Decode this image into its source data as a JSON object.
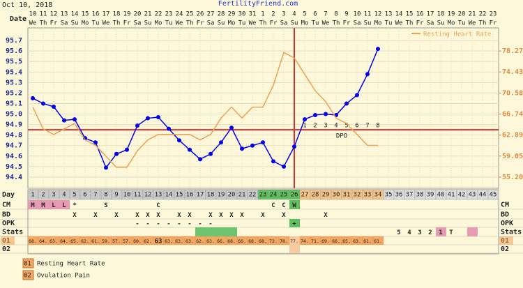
{
  "header": {
    "date": "Oct 10, 2018",
    "site": "FertilityFriend.com"
  },
  "chart_data": {
    "type": "line",
    "row_labels": {
      "date": "Date",
      "day": "Day"
    },
    "categories": [
      "10",
      "11",
      "12",
      "13",
      "14",
      "15",
      "16",
      "17",
      "18",
      "19",
      "20",
      "21",
      "22",
      "23",
      "24",
      "25",
      "26",
      "27",
      "28",
      "29",
      "30",
      "31",
      "1",
      "2",
      "3",
      "4",
      "5",
      "6",
      "7",
      "8",
      "9",
      "10",
      "11",
      "12",
      "13",
      "14",
      "15",
      "16",
      "17",
      "18",
      "19",
      "20",
      "21",
      "22",
      "23"
    ],
    "weekdays": [
      "We",
      "Th",
      "Fr",
      "Sa",
      "Su",
      "Mo",
      "Tu",
      "We",
      "Th",
      "Fr",
      "Sa",
      "Su",
      "Mo",
      "Tu",
      "We",
      "Th",
      "Fr",
      "Sa",
      "Su",
      "Mo",
      "Tu",
      "We",
      "Th",
      "Fr",
      "Sa",
      "Su",
      "Mo",
      "Tu",
      "We",
      "Th",
      "Fr",
      "Sa",
      "Su",
      "Mo",
      "Tu",
      "We",
      "Th",
      "Fr",
      "Sa",
      "Su",
      "Mo",
      "Tu",
      "We",
      "Th",
      "Fr"
    ],
    "days": [
      1,
      2,
      3,
      4,
      5,
      6,
      7,
      8,
      9,
      10,
      11,
      12,
      13,
      14,
      15,
      16,
      17,
      18,
      19,
      20,
      21,
      22,
      23,
      24,
      25,
      26,
      27,
      28,
      29,
      30,
      31,
      32,
      33,
      34,
      35,
      36,
      37,
      38,
      39,
      40,
      41,
      42,
      43,
      44,
      45
    ],
    "ylim": [
      94.3,
      95.8
    ],
    "yticks": [
      95.7,
      95.6,
      95.5,
      95.4,
      95.3,
      95.2,
      95.1,
      {
        "value": 95,
        "label": "95.0"
      },
      94.9,
      94.8,
      94.7,
      94.6,
      94.5,
      94.4
    ],
    "y2lim": [
      53.28,
      82.11
    ],
    "y2ticks": [
      78.27,
      74.43,
      70.58,
      66.74,
      62.89,
      59.05,
      {
        "value": 55.2,
        "label": "55.20"
      }
    ],
    "grid": true,
    "coverline": {
      "value": 94.85,
      "color": "#d03030"
    },
    "ovulation_day": 26,
    "ovulation_color": "#d03030",
    "dpo": {
      "label": "DPO",
      "values": [
        1,
        2,
        3,
        4,
        5,
        6,
        7,
        8
      ]
    },
    "legend": "top-right",
    "series": [
      {
        "color": "#0000ee",
        "values": [
          95.15,
          95.1,
          95.07,
          94.94,
          94.95,
          94.77,
          94.73,
          94.49,
          94.62,
          94.66,
          94.89,
          94.96,
          94.97,
          94.86,
          94.75,
          94.66,
          94.57,
          94.62,
          94.73,
          94.87,
          94.67,
          94.7,
          94.73,
          94.55,
          94.5,
          94.69,
          94.95,
          94.99,
          95.0,
          94.99,
          95.1,
          95.18,
          95.38,
          95.62,
          null,
          null,
          null,
          null,
          null,
          null,
          null,
          null,
          null,
          null,
          null
        ]
      },
      {
        "name": "Resting Heart Rate",
        "color": "#f0a050",
        "axis": "y2",
        "values": [
          68,
          64,
          63,
          64,
          65,
          62,
          61,
          59,
          57,
          57,
          60,
          62,
          63,
          63,
          63,
          63,
          62,
          63,
          66,
          68,
          66,
          68,
          68,
          72,
          78,
          77,
          74,
          71,
          69,
          66,
          65,
          63,
          61,
          61,
          null,
          null,
          null,
          null,
          null,
          null,
          null,
          null,
          null,
          null,
          null
        ],
        "value_labels": [
          "68.",
          "64.",
          "63.",
          "64.",
          "65.",
          "62.",
          "61.",
          "59.",
          "57.",
          "57.",
          "60.",
          "62.",
          "63",
          "63.",
          "63.",
          "63.",
          "62.",
          "63.",
          "66.",
          "68.",
          "66.",
          "68.",
          "68.",
          "72.",
          "78.",
          "77.",
          "74.",
          "71.",
          "69.",
          "66.",
          "65.",
          "63.",
          "61.",
          "61.",
          null,
          null,
          null,
          null,
          null,
          null,
          null,
          null,
          null,
          null,
          null
        ]
      }
    ]
  },
  "table": {
    "day_fills": [
      {
        "from": 1,
        "to": 22,
        "color": "#c9c9c9"
      },
      {
        "from": 23,
        "to": 26,
        "color": "#5fbf5f"
      },
      {
        "from": 27,
        "to": 34,
        "color": "#f3c488"
      },
      {
        "from": 35,
        "to": 45,
        "color": "#dcdcdc"
      }
    ],
    "rows": [
      {
        "label": "CM",
        "cells": [
          {
            "day": 1,
            "text": "M",
            "color": "#e79bb2"
          },
          {
            "day": 2,
            "text": "M",
            "color": "#e79bb2"
          },
          {
            "day": 3,
            "text": "L",
            "color": "#e79bb2"
          },
          {
            "day": 4,
            "text": "L",
            "color": "#e79bb2"
          },
          {
            "day": 5,
            "text": "*"
          },
          {
            "day": 8,
            "text": "S"
          },
          {
            "day": 13,
            "text": "C"
          },
          {
            "day": 24,
            "text": "C"
          },
          {
            "day": 25,
            "text": "C"
          },
          {
            "day": 26,
            "text": "W",
            "color": "#5fbf5f"
          }
        ]
      },
      {
        "label": "BD",
        "cells": [
          {
            "day": 5,
            "text": "X"
          },
          {
            "day": 7,
            "text": "X"
          },
          {
            "day": 9,
            "text": "X"
          },
          {
            "day": 11,
            "text": "X"
          },
          {
            "day": 12,
            "text": "X"
          },
          {
            "day": 13,
            "text": "X"
          },
          {
            "day": 15,
            "text": "X"
          },
          {
            "day": 16,
            "text": "X"
          },
          {
            "day": 18,
            "text": "X"
          },
          {
            "day": 19,
            "text": "X"
          },
          {
            "day": 20,
            "text": "X"
          },
          {
            "day": 21,
            "text": "X"
          },
          {
            "day": 23,
            "text": "X"
          },
          {
            "day": 25,
            "text": "X"
          },
          {
            "day": 29,
            "text": "X"
          }
        ]
      },
      {
        "label": "OPK",
        "cells": [
          {
            "day": 11,
            "text": "-"
          },
          {
            "day": 12,
            "text": "-"
          },
          {
            "day": 13,
            "text": "-"
          },
          {
            "day": 14,
            "text": "-"
          },
          {
            "day": 15,
            "text": "-"
          },
          {
            "day": 16,
            "text": "-"
          },
          {
            "day": 17,
            "text": "-"
          },
          {
            "day": 18,
            "text": "-"
          },
          {
            "day": 26,
            "text": "+",
            "color": "#5fbf5f"
          }
        ]
      },
      {
        "label": "Stats",
        "cells": [
          {
            "day": 17,
            "color": "#6fc46f"
          },
          {
            "day": 18,
            "color": "#6fc46f"
          },
          {
            "day": 19,
            "color": "#6fc46f"
          },
          {
            "day": 20,
            "color": "#6fc46f"
          },
          {
            "day": 36,
            "text": "5"
          },
          {
            "day": 37,
            "text": "4"
          },
          {
            "day": 38,
            "text": "3"
          },
          {
            "day": 39,
            "text": "2"
          },
          {
            "day": 40,
            "text": "1",
            "color": "#e79bb2"
          },
          {
            "day": 41,
            "text": "T"
          },
          {
            "day": 43,
            "color": "#e79bb2"
          }
        ]
      },
      {
        "label": "01",
        "color": "#f2a860",
        "labels_from_series": 1
      },
      {
        "label": "02"
      }
    ],
    "ovulation_fill": "#f8caa0",
    "legend": [
      {
        "code": "01",
        "name": "Resting Heart Rate",
        "color": "#f2a860"
      },
      {
        "code": "02",
        "name": "Ovulation Pain",
        "color": "#f2a860"
      }
    ]
  }
}
